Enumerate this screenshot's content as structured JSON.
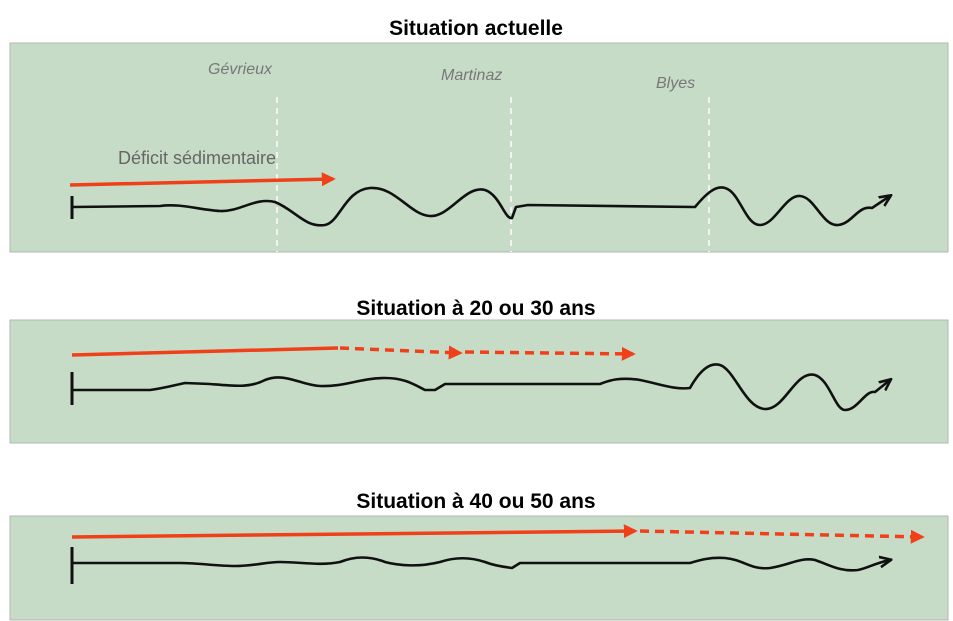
{
  "panels": [
    {
      "title": "Situation actuelle",
      "places": [
        "Gévrieux",
        "Martinaz",
        "Blyes"
      ],
      "arrow_label": "Déficit sédimentaire"
    },
    {
      "title": "Situation à 20 ou 30 ans"
    },
    {
      "title": "Situation à 40 ou 50 ans"
    }
  ]
}
